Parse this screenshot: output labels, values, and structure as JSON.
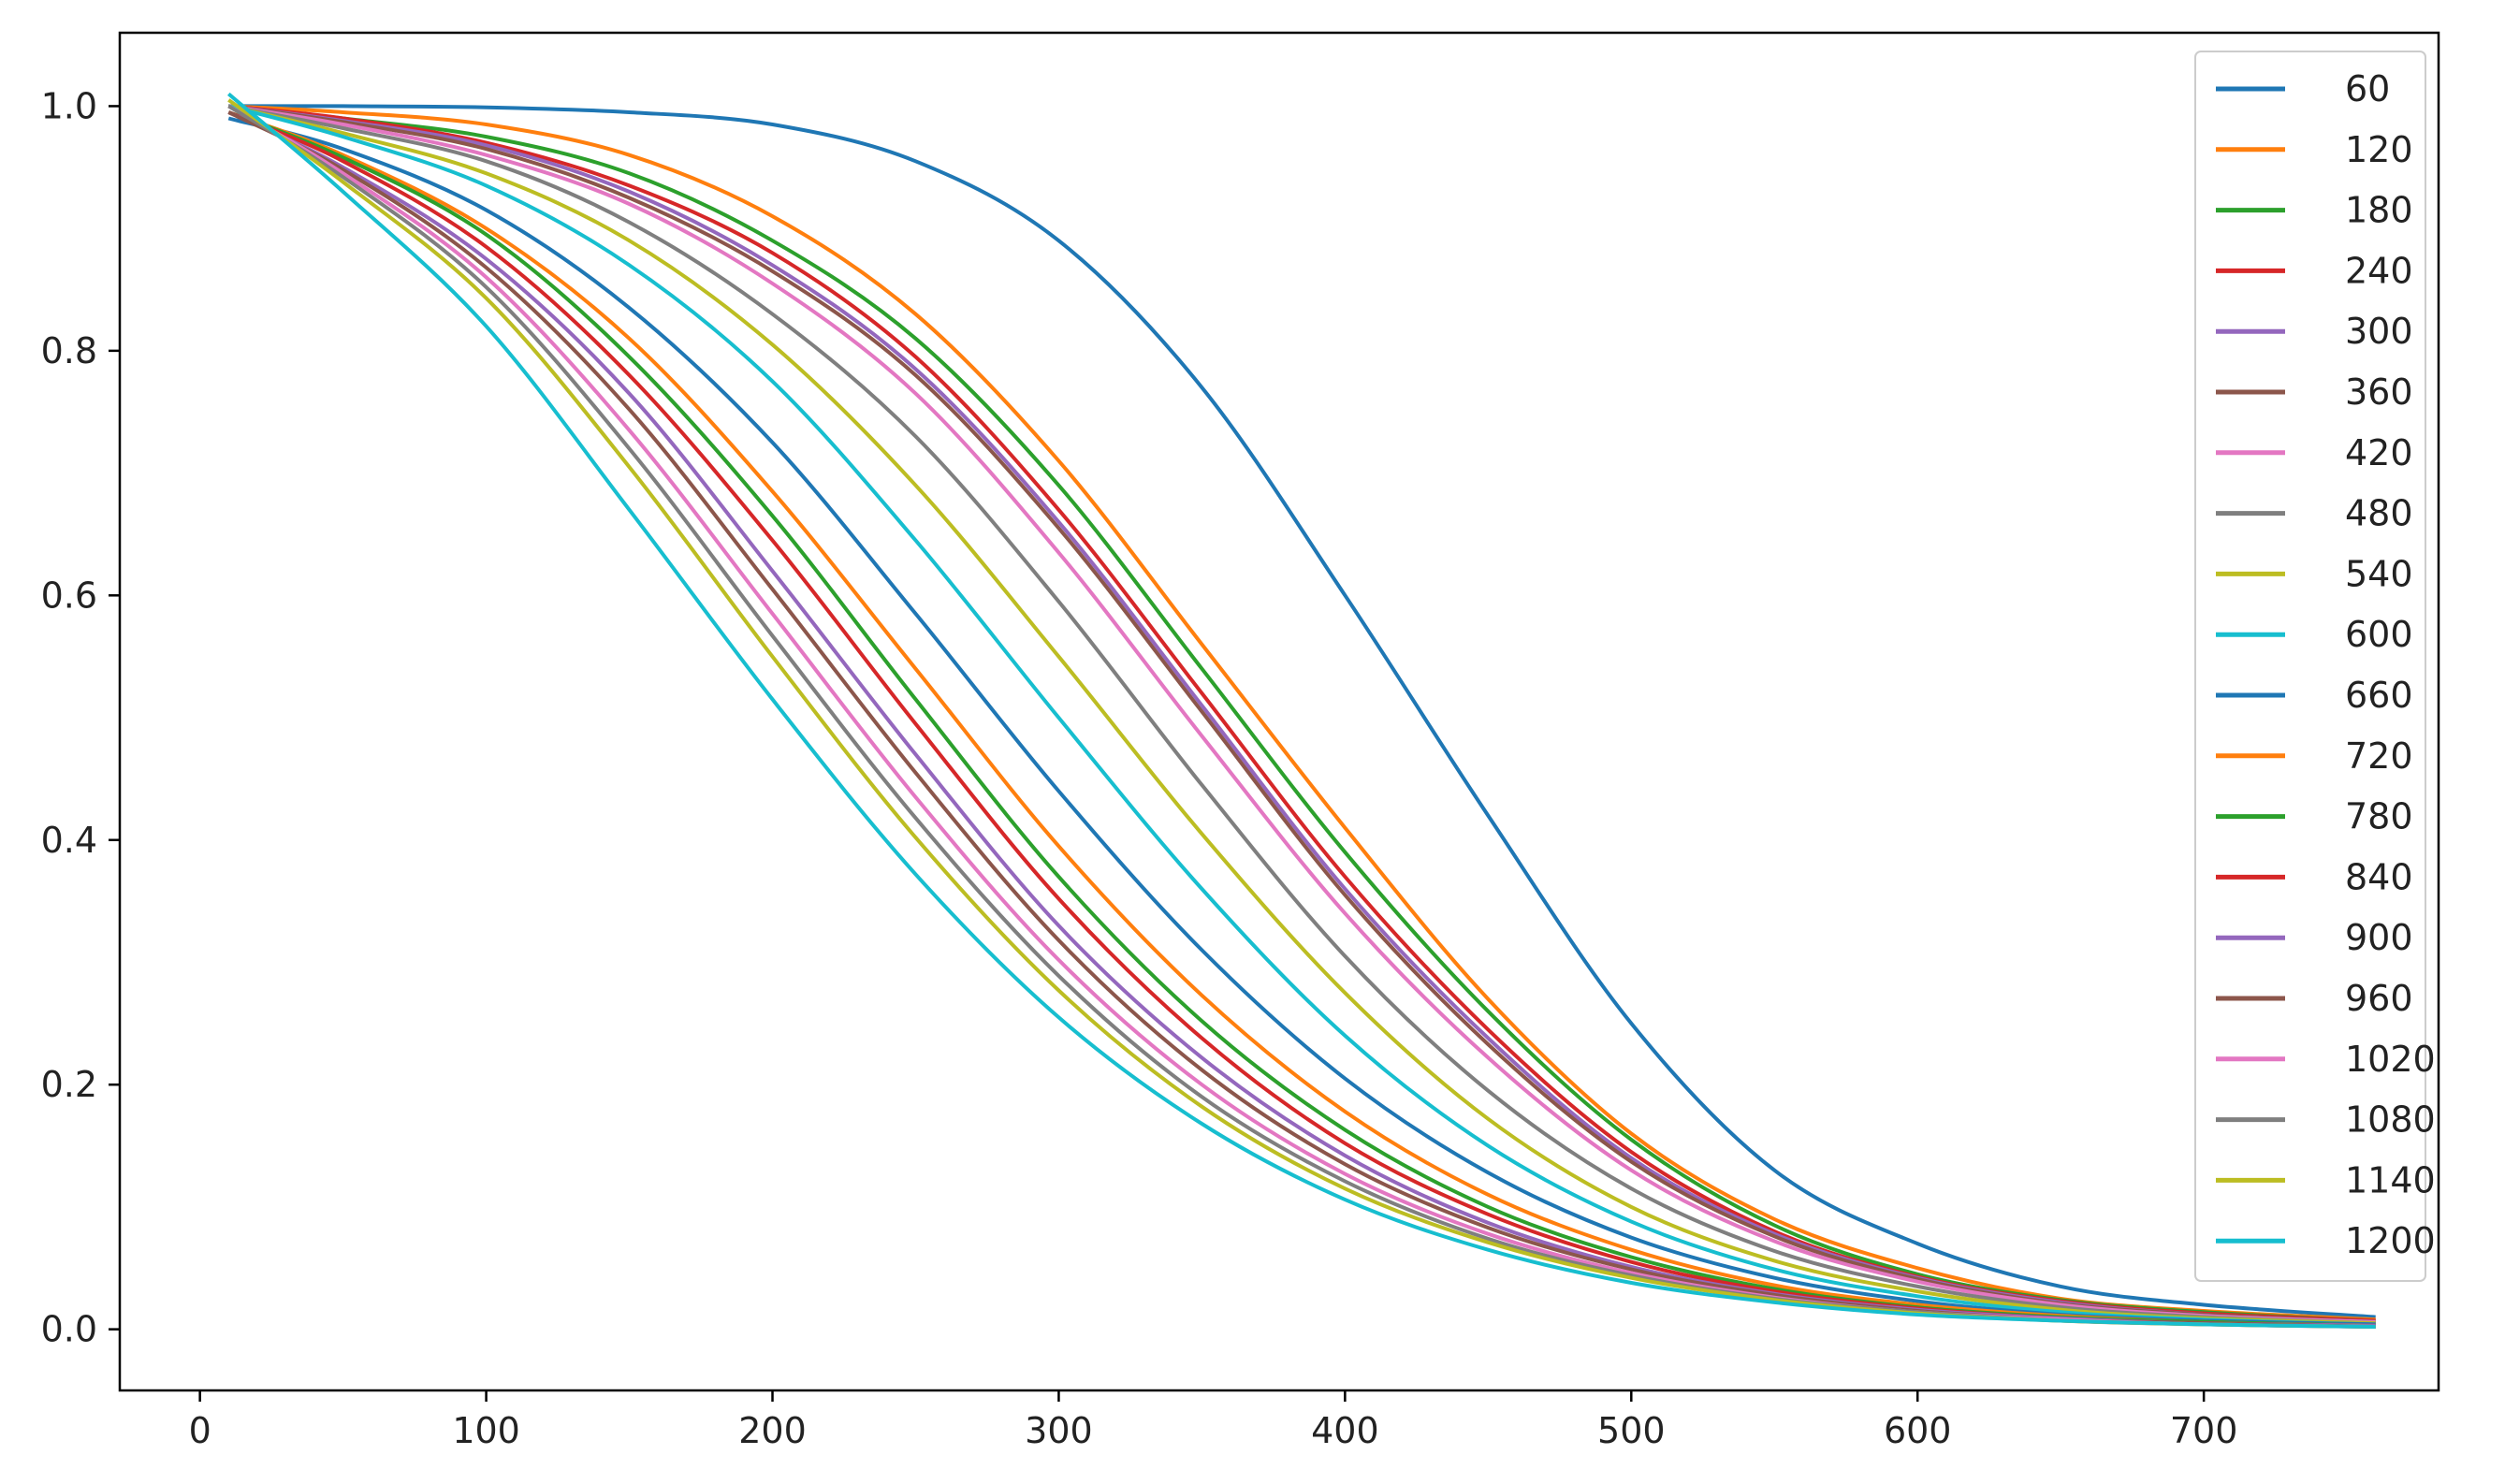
{
  "chart_data": {
    "type": "line",
    "title": "",
    "xlabel": "",
    "ylabel": "",
    "xlim": [
      -28,
      782
    ],
    "ylim": [
      -0.05,
      1.06
    ],
    "x_ticks": [
      0,
      100,
      200,
      300,
      400,
      500,
      600,
      700
    ],
    "x_tick_labels": [
      "0",
      "100",
      "200",
      "300",
      "400",
      "500",
      "600",
      "700"
    ],
    "y_ticks": [
      0.0,
      0.2,
      0.4,
      0.6,
      0.8,
      1.0
    ],
    "y_tick_labels": [
      "0.0",
      "0.2",
      "0.4",
      "0.6",
      "0.8",
      "1.0"
    ],
    "grid": false,
    "legend_position": "top-right",
    "x": [
      10,
      50,
      100,
      150,
      200,
      250,
      300,
      350,
      400,
      450,
      500,
      550,
      600,
      650,
      700,
      760
    ],
    "series": [
      {
        "name": "60",
        "color": "#1f77b4",
        "values": [
          1.0,
          1.0,
          0.999,
          0.995,
          0.985,
          0.955,
          0.89,
          0.77,
          0.6,
          0.42,
          0.25,
          0.13,
          0.07,
          0.035,
          0.02,
          0.01
        ]
      },
      {
        "name": "120",
        "color": "#ff7f0e",
        "values": [
          1.0,
          0.995,
          0.985,
          0.96,
          0.91,
          0.83,
          0.71,
          0.56,
          0.41,
          0.27,
          0.16,
          0.09,
          0.05,
          0.025,
          0.015,
          0.008
        ]
      },
      {
        "name": "180",
        "color": "#2ca02c",
        "values": [
          1.0,
          0.99,
          0.975,
          0.945,
          0.89,
          0.81,
          0.69,
          0.54,
          0.39,
          0.26,
          0.155,
          0.085,
          0.045,
          0.024,
          0.014,
          0.007
        ]
      },
      {
        "name": "240",
        "color": "#d62728",
        "values": [
          1.0,
          0.99,
          0.97,
          0.935,
          0.88,
          0.795,
          0.67,
          0.52,
          0.37,
          0.245,
          0.145,
          0.08,
          0.043,
          0.023,
          0.013,
          0.007
        ]
      },
      {
        "name": "300",
        "color": "#9467bd",
        "values": [
          1.0,
          0.988,
          0.968,
          0.93,
          0.87,
          0.785,
          0.66,
          0.51,
          0.36,
          0.238,
          0.14,
          0.078,
          0.042,
          0.022,
          0.012,
          0.006
        ]
      },
      {
        "name": "360",
        "color": "#8c564b",
        "values": [
          1.0,
          0.987,
          0.965,
          0.925,
          0.865,
          0.78,
          0.655,
          0.505,
          0.355,
          0.233,
          0.137,
          0.076,
          0.041,
          0.021,
          0.012,
          0.006
        ]
      },
      {
        "name": "420",
        "color": "#e377c2",
        "values": [
          1.0,
          0.985,
          0.96,
          0.92,
          0.855,
          0.765,
          0.635,
          0.485,
          0.34,
          0.222,
          0.13,
          0.072,
          0.039,
          0.02,
          0.011,
          0.006
        ]
      },
      {
        "name": "480",
        "color": "#7f7f7f",
        "values": [
          1.0,
          0.982,
          0.955,
          0.905,
          0.83,
          0.73,
          0.595,
          0.445,
          0.305,
          0.195,
          0.115,
          0.064,
          0.035,
          0.018,
          0.01,
          0.005
        ]
      },
      {
        "name": "540",
        "color": "#bcbd22",
        "values": [
          1.0,
          0.978,
          0.945,
          0.89,
          0.805,
          0.69,
          0.55,
          0.405,
          0.275,
          0.172,
          0.1,
          0.056,
          0.031,
          0.016,
          0.009,
          0.005
        ]
      },
      {
        "name": "600",
        "color": "#17becf",
        "values": [
          1.0,
          0.975,
          0.935,
          0.87,
          0.775,
          0.645,
          0.5,
          0.36,
          0.24,
          0.15,
          0.088,
          0.049,
          0.027,
          0.014,
          0.008,
          0.004
        ]
      },
      {
        "name": "660",
        "color": "#1f77b4",
        "values": [
          0.99,
          0.965,
          0.915,
          0.835,
          0.725,
          0.585,
          0.44,
          0.31,
          0.205,
          0.128,
          0.075,
          0.042,
          0.023,
          0.012,
          0.007,
          0.004
        ]
      },
      {
        "name": "720",
        "color": "#ff7f0e",
        "values": [
          0.995,
          0.96,
          0.9,
          0.81,
          0.685,
          0.54,
          0.395,
          0.273,
          0.178,
          0.11,
          0.065,
          0.036,
          0.02,
          0.011,
          0.006,
          0.003
        ]
      },
      {
        "name": "780",
        "color": "#2ca02c",
        "values": [
          0.995,
          0.958,
          0.895,
          0.795,
          0.665,
          0.515,
          0.37,
          0.252,
          0.163,
          0.1,
          0.059,
          0.033,
          0.018,
          0.01,
          0.006,
          0.003
        ]
      },
      {
        "name": "840",
        "color": "#d62728",
        "values": [
          0.995,
          0.955,
          0.885,
          0.78,
          0.645,
          0.495,
          0.352,
          0.238,
          0.152,
          0.094,
          0.055,
          0.031,
          0.017,
          0.009,
          0.005,
          0.003
        ]
      },
      {
        "name": "900",
        "color": "#9467bd",
        "values": [
          0.995,
          0.95,
          0.875,
          0.765,
          0.62,
          0.47,
          0.33,
          0.222,
          0.142,
          0.087,
          0.051,
          0.029,
          0.016,
          0.009,
          0.005,
          0.003
        ]
      },
      {
        "name": "960",
        "color": "#8c564b",
        "values": [
          0.995,
          0.948,
          0.868,
          0.752,
          0.605,
          0.455,
          0.318,
          0.212,
          0.135,
          0.083,
          0.049,
          0.028,
          0.015,
          0.008,
          0.005,
          0.002
        ]
      },
      {
        "name": "1020",
        "color": "#e377c2",
        "values": [
          1.0,
          0.945,
          0.86,
          0.735,
          0.585,
          0.435,
          0.302,
          0.2,
          0.127,
          0.078,
          0.046,
          0.026,
          0.014,
          0.008,
          0.004,
          0.002
        ]
      },
      {
        "name": "1080",
        "color": "#7f7f7f",
        "values": [
          1.0,
          0.942,
          0.852,
          0.72,
          0.567,
          0.418,
          0.289,
          0.19,
          0.121,
          0.074,
          0.044,
          0.025,
          0.014,
          0.007,
          0.004,
          0.002
        ]
      },
      {
        "name": "1140",
        "color": "#bcbd22",
        "values": [
          1.005,
          0.938,
          0.843,
          0.705,
          0.55,
          0.402,
          0.277,
          0.182,
          0.115,
          0.071,
          0.042,
          0.024,
          0.013,
          0.007,
          0.004,
          0.002
        ]
      },
      {
        "name": "1200",
        "color": "#17becf",
        "values": [
          1.01,
          0.93,
          0.82,
          0.67,
          0.515,
          0.372,
          0.255,
          0.168,
          0.106,
          0.065,
          0.038,
          0.022,
          0.012,
          0.007,
          0.004,
          0.002
        ]
      }
    ]
  }
}
